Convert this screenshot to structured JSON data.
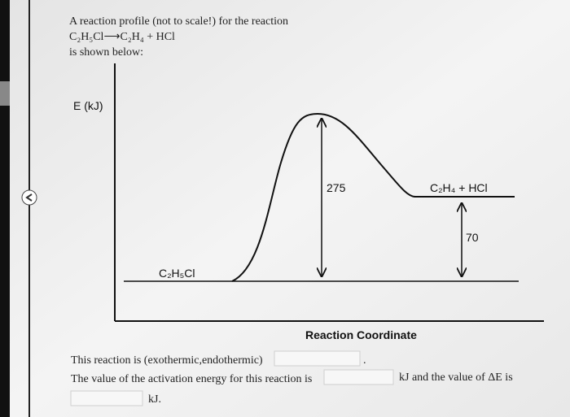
{
  "intro": {
    "line1": "A reaction profile (not to scale!) for the reaction",
    "equation": "C₂H₅Cl⟶C₂H₄ + HCl",
    "line3": "is shown below:"
  },
  "diagram": {
    "y_axis_label": "E (kJ)",
    "activation_label": "275",
    "delta_label": "70",
    "reactant": "C₂H₅Cl",
    "product": "C₂H₄ + HCl",
    "x_axis_label": "Reaction Coordinate"
  },
  "questions": {
    "q1": "This reaction is (exothermic,endothermic)",
    "q1_end": ".",
    "q2": "The value of the activation energy for this reaction is",
    "q2_mid": "kJ and the value of ΔE is",
    "q3_end": "kJ."
  }
}
